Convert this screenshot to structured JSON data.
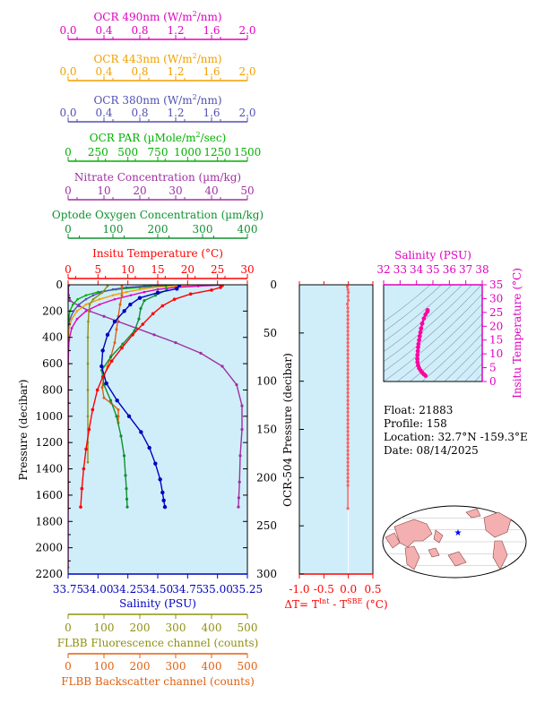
{
  "colors": {
    "ocr490": "#e000c0",
    "ocr443": "#f0a000",
    "ocr380": "#5050b0",
    "par": "#00b000",
    "nitrate": "#a030a0",
    "oxygen": "#109030",
    "temperature": "#ff0000",
    "salinity": "#0000c0",
    "fluorescence": "#909010",
    "backscatter": "#e06010",
    "dt": "#ff6060",
    "ts": "#ff00a0",
    "magenta_axis": "#e000c0",
    "panel_bg": "#cfeefa",
    "map_land": "#f4b0b0",
    "map_ocean": "#ffffff",
    "star": "#0000ff"
  },
  "info": {
    "float_line": "Float:  21883",
    "profile_line": "Profile:  158",
    "location_line": "Location:  32.7°N  -159.3°E",
    "date_line": "Date:  08/14/2025"
  },
  "chart_data": [
    {
      "type": "line",
      "panel": "main",
      "ylabel": "Pressure (decibar)",
      "ylim": [
        2200,
        0
      ],
      "yticks": [
        0,
        200,
        400,
        600,
        800,
        1000,
        1200,
        1400,
        1600,
        1800,
        2000,
        2200
      ],
      "axes": [
        {
          "key": "ocr490",
          "title": "OCR 490nm (W/m²/nm)",
          "title_main": "OCR 490nm (W/m",
          "title_sup": "2",
          "title_rest": "/nm)",
          "range": [
            0,
            2
          ],
          "ticks": [
            "0.0",
            "0.4",
            "0.8",
            "1.2",
            "1.6",
            "2.0"
          ]
        },
        {
          "key": "ocr443",
          "title": "OCR 443nm (W/m²/nm)",
          "title_main": "OCR 443nm (W/m",
          "title_sup": "2",
          "title_rest": "/nm)",
          "range": [
            0,
            2
          ],
          "ticks": [
            "0.0",
            "0.4",
            "0.8",
            "1.2",
            "1.6",
            "2.0"
          ]
        },
        {
          "key": "ocr380",
          "title": "OCR 380nm (W/m²/nm)",
          "title_main": "OCR 380nm (W/m",
          "title_sup": "2",
          "title_rest": "/nm)",
          "range": [
            0,
            2
          ],
          "ticks": [
            "0.0",
            "0.4",
            "0.8",
            "1.2",
            "1.6",
            "2.0"
          ]
        },
        {
          "key": "par",
          "title": "OCR PAR (µMole/m²/sec)",
          "title_main": "OCR PAR (µMole/m",
          "title_sup": "2",
          "title_rest": "/sec)",
          "range": [
            0,
            1500
          ],
          "ticks": [
            "0",
            "250",
            "500",
            "750",
            "1000",
            "1250",
            "1500"
          ]
        },
        {
          "key": "nitrate",
          "title": "Nitrate Concentration (µm/kg)",
          "title_main": "Nitrate Concentration (µm/kg)",
          "title_sup": "",
          "title_rest": "",
          "range": [
            0,
            50
          ],
          "ticks": [
            "0",
            "10",
            "20",
            "30",
            "40",
            "50"
          ]
        },
        {
          "key": "oxygen",
          "title": "Optode Oxygen Concentration (µm/kg)",
          "title_main": "Optode Oxygen Concentration (µm/kg)",
          "title_sup": "",
          "title_rest": "",
          "range": [
            0,
            400
          ],
          "ticks": [
            "0",
            "100",
            "200",
            "300",
            "400"
          ]
        },
        {
          "key": "temperature",
          "title": "Insitu Temperature (°C)",
          "title_main": "Insitu Temperature (°C)",
          "title_sup": "",
          "title_rest": "",
          "range": [
            0,
            30
          ],
          "ticks": [
            "0",
            "5",
            "10",
            "15",
            "20",
            "25",
            "30"
          ]
        }
      ],
      "bottom_axes": [
        {
          "key": "salinity",
          "title": "Salinity (PSU)",
          "range": [
            33.75,
            35.25
          ],
          "ticks": [
            "33.75",
            "34.00",
            "34.25",
            "34.50",
            "34.75",
            "35.00",
            "35.25"
          ]
        },
        {
          "key": "fluorescence",
          "title": "FLBB Fluorescence channel (counts)",
          "range": [
            0,
            500
          ],
          "ticks": [
            "0",
            "100",
            "200",
            "300",
            "400",
            "500"
          ]
        },
        {
          "key": "backscatter",
          "title": "FLBB Backscatter channel (counts)",
          "range": [
            0,
            500
          ],
          "ticks": [
            "0",
            "100",
            "200",
            "300",
            "400",
            "500"
          ]
        }
      ],
      "series": [
        {
          "name": "Insitu Temperature",
          "key": "temperature",
          "x": [
            25.8,
            25.5,
            24.0,
            20.5,
            17.8,
            15.8,
            14.2,
            12.5,
            10.8,
            9.0,
            7.3,
            5.8,
            4.9,
            4.1,
            3.5,
            3.0,
            2.6,
            2.3,
            2.1
          ],
          "y": [
            5,
            20,
            40,
            70,
            110,
            160,
            220,
            300,
            380,
            480,
            580,
            700,
            800,
            950,
            1100,
            1250,
            1400,
            1550,
            1690
          ]
        },
        {
          "name": "Salinity",
          "key": "salinity",
          "x": [
            34.68,
            34.66,
            34.5,
            34.35,
            34.27,
            34.22,
            34.14,
            34.08,
            34.04,
            34.03,
            34.07,
            34.16,
            34.26,
            34.36,
            34.43,
            34.48,
            34.52,
            34.54,
            34.55,
            34.56
          ],
          "y": [
            5,
            30,
            60,
            100,
            150,
            200,
            280,
            380,
            500,
            620,
            750,
            880,
            1000,
            1120,
            1240,
            1360,
            1480,
            1580,
            1640,
            1690
          ]
        },
        {
          "name": "Optode Oxygen Concentration",
          "key": "oxygen",
          "x": [
            218,
            220,
            195,
            170,
            162,
            158,
            148,
            122,
            95,
            75,
            80,
            95,
            108,
            118,
            125,
            128,
            130,
            131,
            132
          ],
          "y": [
            5,
            40,
            80,
            120,
            180,
            260,
            350,
            450,
            550,
            650,
            760,
            880,
            1000,
            1150,
            1300,
            1450,
            1550,
            1630,
            1690
          ]
        },
        {
          "name": "Nitrate Concentration",
          "key": "nitrate",
          "x": [
            0.1,
            0.1,
            0.5,
            3,
            6,
            10,
            14,
            19,
            24,
            30,
            37,
            43,
            47,
            48.5,
            48.5,
            48,
            47.8,
            47.6,
            47.5
          ],
          "y": [
            5,
            80,
            120,
            160,
            200,
            240,
            280,
            330,
            380,
            440,
            520,
            620,
            760,
            920,
            1100,
            1300,
            1500,
            1620,
            1690
          ]
        },
        {
          "name": "OCR PAR",
          "key": "par",
          "x": [
            1100,
            800,
            600,
            400,
            250,
            150,
            80,
            40,
            15,
            5,
            2,
            0,
            0,
            0,
            0,
            0,
            0,
            0
          ],
          "y": [
            2,
            10,
            20,
            35,
            55,
            80,
            110,
            150,
            200,
            260,
            330,
            420,
            600,
            800,
            1000,
            1200,
            1400,
            1600
          ]
        },
        {
          "name": "OCR 380nm",
          "key": "ocr380",
          "x": [
            1.15,
            0.85,
            0.65,
            0.5,
            0.38,
            0.28,
            0.2,
            0.12,
            0.06,
            0.02,
            0,
            0,
            0,
            0,
            0,
            0
          ],
          "y": [
            2,
            10,
            20,
            35,
            55,
            80,
            110,
            150,
            200,
            260,
            330,
            500,
            800,
            1100,
            1400,
            1700
          ]
        },
        {
          "name": "OCR 443nm",
          "key": "ocr443",
          "x": [
            1.5,
            1.2,
            0.95,
            0.8,
            0.65,
            0.5,
            0.35,
            0.2,
            0.1,
            0.04,
            0.01,
            0,
            0,
            0,
            0,
            0
          ],
          "y": [
            2,
            10,
            20,
            35,
            55,
            80,
            110,
            150,
            200,
            260,
            330,
            500,
            800,
            1100,
            1400,
            1700
          ]
        },
        {
          "name": "OCR 490nm",
          "key": "ocr490",
          "x": [
            1.7,
            1.45,
            1.2,
            1.0,
            0.85,
            0.7,
            0.52,
            0.35,
            0.2,
            0.1,
            0.04,
            0.01,
            0,
            0,
            0,
            0,
            0
          ],
          "y": [
            2,
            10,
            20,
            35,
            55,
            80,
            110,
            150,
            200,
            260,
            330,
            420,
            600,
            900,
            1200,
            1500,
            2150
          ]
        },
        {
          "name": "FLBB Fluorescence",
          "key": "fluorescence",
          "x": [
            110,
            95,
            70,
            60,
            58,
            56,
            55,
            55,
            55,
            55,
            55,
            55
          ],
          "y": [
            10,
            60,
            110,
            150,
            200,
            280,
            400,
            600,
            800,
            1000,
            1200,
            1350
          ]
        },
        {
          "name": "FLBB Backscatter",
          "key": "backscatter",
          "x": [
            150,
            150,
            145,
            140,
            135,
            130,
            120,
            110,
            100,
            95,
            100,
            120,
            140,
            140,
            140
          ],
          "y": [
            10,
            80,
            150,
            240,
            340,
            440,
            540,
            620,
            700,
            780,
            860,
            900,
            950,
            1000,
            1050
          ]
        }
      ]
    },
    {
      "type": "line",
      "panel": "delta_t",
      "xlabel": "ΔT= T^Int - T^SBE (°C)",
      "xlabel_a": "ΔT= T",
      "xlabel_sup1": "Int",
      "xlabel_b": " - T",
      "xlabel_sup2": "SBE",
      "xlabel_c": " (°C)",
      "ylabel": "OCR-504 Pressure (decibar)",
      "xlim": [
        -1.0,
        0.5
      ],
      "xticks": [
        "-1.0",
        "-0.5",
        "0.0",
        "0.5"
      ],
      "ylim": [
        300,
        0
      ],
      "yticks": [
        "0",
        "50",
        "100",
        "150",
        "200",
        "250",
        "300"
      ],
      "series": [
        {
          "name": "ΔT",
          "x": [
            -0.02,
            -0.01,
            0.0,
            -0.01,
            0.0,
            -0.02,
            -0.01,
            -0.01,
            -0.01,
            -0.01,
            -0.01,
            -0.01,
            -0.01,
            -0.01,
            -0.01,
            -0.01,
            -0.01,
            -0.01,
            -0.01,
            -0.01,
            -0.01,
            -0.01,
            -0.01,
            -0.01,
            -0.01,
            -0.01,
            -0.01,
            -0.01,
            -0.01,
            -0.01,
            -0.01,
            -0.01,
            -0.01,
            -0.01,
            -0.01,
            -0.01,
            -0.01,
            -0.01,
            -0.01,
            -0.01,
            -0.01,
            -0.01,
            -0.01,
            -0.01,
            -0.01,
            -0.01,
            -0.01,
            -0.01,
            -0.01,
            -0.01,
            -0.01,
            -0.01,
            -0.01,
            -0.01
          ],
          "y": [
            2,
            5,
            8,
            12,
            16,
            20,
            24,
            28,
            32,
            36,
            40,
            44,
            48,
            52,
            56,
            60,
            64,
            68,
            72,
            76,
            80,
            84,
            88,
            92,
            96,
            100,
            104,
            108,
            112,
            116,
            120,
            124,
            128,
            132,
            136,
            140,
            144,
            148,
            152,
            156,
            160,
            164,
            168,
            172,
            176,
            180,
            184,
            188,
            192,
            196,
            200,
            204,
            208,
            232
          ]
        }
      ]
    },
    {
      "type": "scatter",
      "panel": "ts",
      "title": "Salinity (PSU)",
      "ylabel": "Insitu Temperature (°C)",
      "xlim": [
        32,
        38
      ],
      "xticks": [
        "32",
        "33",
        "34",
        "35",
        "36",
        "37",
        "38"
      ],
      "ylim": [
        0,
        35
      ],
      "yticks": [
        "0",
        "5",
        "10",
        "15",
        "20",
        "25",
        "30",
        "35"
      ],
      "series": [
        {
          "name": "T-S",
          "x": [
            34.68,
            34.66,
            34.55,
            34.45,
            34.35,
            34.28,
            34.24,
            34.2,
            34.16,
            34.12,
            34.1,
            34.08,
            34.06,
            34.05,
            34.06,
            34.1,
            34.16,
            34.25,
            34.35,
            34.45,
            34.55
          ],
          "y": [
            25.8,
            25.3,
            24.2,
            22.8,
            21.0,
            19.2,
            17.8,
            16.4,
            15.0,
            13.6,
            12.4,
            11.0,
            9.6,
            8.2,
            7.0,
            5.8,
            4.8,
            4.0,
            3.2,
            2.6,
            2.1
          ]
        }
      ]
    }
  ]
}
